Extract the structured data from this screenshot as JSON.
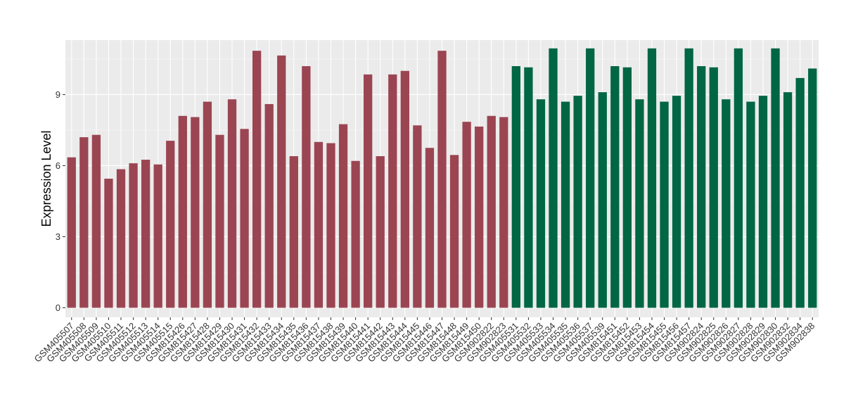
{
  "chart_data": {
    "type": "bar",
    "title": "",
    "xlabel": "",
    "ylabel": "Expression Level",
    "ylim": [
      -0.4,
      11.3
    ],
    "yticks": [
      0,
      3,
      6,
      9
    ],
    "grid": true,
    "background": "#EBEBEB",
    "colors": {
      "group1": "#9B4552",
      "group2": "#006643"
    },
    "categories": [
      "GSM405507",
      "GSM405508",
      "GSM405509",
      "GSM405510",
      "GSM405511",
      "GSM405512",
      "GSM405513",
      "GSM405514",
      "GSM405515",
      "GSM815426",
      "GSM815427",
      "GSM815428",
      "GSM815429",
      "GSM815430",
      "GSM815431",
      "GSM815432",
      "GSM815433",
      "GSM815434",
      "GSM815435",
      "GSM815436",
      "GSM815437",
      "GSM815438",
      "GSM815439",
      "GSM815440",
      "GSM815441",
      "GSM815442",
      "GSM815443",
      "GSM815444",
      "GSM815445",
      "GSM815446",
      "GSM815447",
      "GSM815448",
      "GSM815449",
      "GSM815450",
      "GSM902822",
      "GSM902823",
      "GSM405531",
      "GSM405532",
      "GSM405533",
      "GSM405534",
      "GSM405535",
      "GSM405536",
      "GSM405537",
      "GSM405539",
      "GSM815451",
      "GSM815452",
      "GSM815453",
      "GSM815454",
      "GSM815455",
      "GSM815456",
      "GSM815457",
      "GSM902824",
      "GSM902825",
      "GSM902826",
      "GSM902827",
      "GSM902828",
      "GSM902829",
      "GSM902830",
      "GSM902832",
      "GSM902834",
      "GSM902838"
    ],
    "values": [
      6.35,
      7.2,
      7.3,
      5.45,
      5.85,
      6.1,
      6.25,
      6.05,
      7.05,
      8.1,
      8.05,
      8.7,
      7.3,
      8.8,
      7.55,
      10.85,
      8.6,
      10.65,
      6.4,
      10.2,
      7.0,
      6.95,
      7.75,
      6.2,
      9.85,
      6.4,
      9.85,
      10.0,
      7.7,
      6.75,
      10.85,
      6.45,
      7.85,
      7.65,
      8.1,
      8.05,
      10.2,
      10.15,
      8.8,
      10.95,
      8.7,
      8.95,
      10.95,
      9.1,
      10.2,
      10.15,
      8.8,
      10.95,
      8.7,
      8.95,
      10.95,
      10.2,
      10.15,
      8.8,
      10.95,
      8.7,
      8.95,
      10.95,
      9.1,
      9.7,
      10.1
    ],
    "groups": [
      "group1",
      "group1",
      "group1",
      "group1",
      "group1",
      "group1",
      "group1",
      "group1",
      "group1",
      "group1",
      "group1",
      "group1",
      "group1",
      "group1",
      "group1",
      "group1",
      "group1",
      "group1",
      "group1",
      "group1",
      "group1",
      "group1",
      "group1",
      "group1",
      "group1",
      "group1",
      "group1",
      "group1",
      "group1",
      "group1",
      "group1",
      "group1",
      "group1",
      "group1",
      "group1",
      "group1",
      "group2",
      "group2",
      "group2",
      "group2",
      "group2",
      "group2",
      "group2",
      "group2",
      "group2",
      "group2",
      "group2",
      "group2",
      "group2",
      "group2",
      "group2",
      "group2",
      "group2",
      "group2",
      "group2",
      "group2",
      "group2",
      "group2",
      "group2",
      "group2",
      "group2"
    ]
  }
}
